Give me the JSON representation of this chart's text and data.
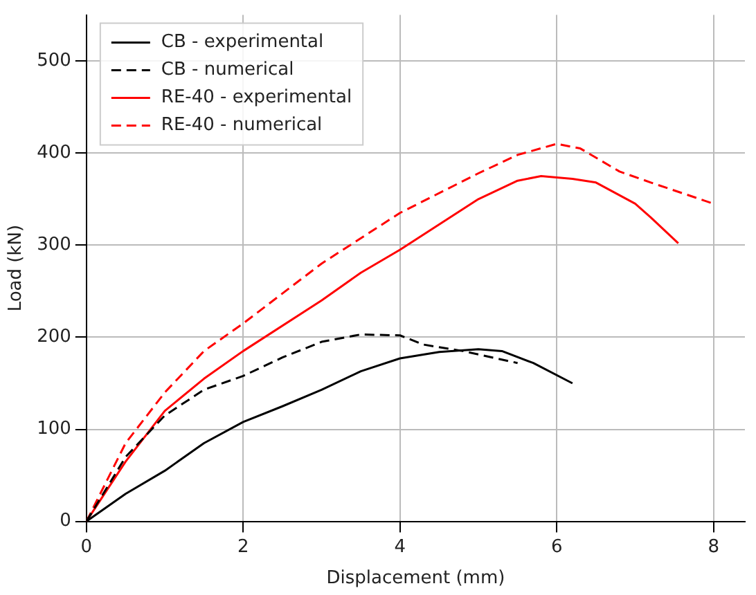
{
  "chart_data": {
    "type": "line",
    "xlabel": "Displacement (mm)",
    "ylabel": "Load (kN)",
    "xlim": [
      0,
      8.4
    ],
    "xticks": [
      0,
      2,
      4,
      6,
      8
    ],
    "ylim": [
      0,
      550
    ],
    "yticks": [
      0,
      100,
      200,
      300,
      400,
      500
    ],
    "grid": true,
    "legend": "top left",
    "marker": "none",
    "series": [
      {
        "name": "CB - experimental",
        "color": "#000000",
        "line_style": "solid",
        "x": [
          0,
          0.5,
          1,
          1.5,
          2,
          2.5,
          3,
          3.5,
          4,
          4.5,
          5,
          5.3,
          5.7,
          6.2
        ],
        "values": [
          0,
          30,
          55,
          85,
          108,
          125,
          143,
          163,
          177,
          184,
          187,
          185,
          172,
          150
        ]
      },
      {
        "name": "CB - numerical",
        "color": "#000000",
        "line_style": "dashed",
        "x": [
          0,
          0.5,
          1,
          1.5,
          2,
          2.5,
          3,
          3.5,
          4,
          4.3,
          4.8,
          5.5
        ],
        "values": [
          0,
          70,
          115,
          143,
          158,
          178,
          195,
          203,
          202,
          192,
          185,
          172
        ]
      },
      {
        "name": "RE-40 - experimental",
        "color": "#ff0000",
        "line_style": "solid",
        "x": [
          0,
          0.5,
          1,
          1.5,
          2,
          3,
          3.5,
          4,
          5,
          5.5,
          5.8,
          6.2,
          6.5,
          7,
          7.2,
          7.55
        ],
        "values": [
          0,
          65,
          120,
          155,
          185,
          240,
          270,
          295,
          350,
          370,
          375,
          372,
          368,
          345,
          330,
          302
        ]
      },
      {
        "name": "RE-40 - numerical",
        "color": "#ff0000",
        "line_style": "dashed",
        "x": [
          0,
          0.5,
          1,
          1.5,
          2,
          3,
          4,
          5,
          5.5,
          6,
          6.3,
          6.8,
          7.2,
          8
        ],
        "values": [
          0,
          85,
          140,
          185,
          215,
          280,
          335,
          378,
          398,
          410,
          405,
          380,
          368,
          345
        ]
      }
    ]
  }
}
